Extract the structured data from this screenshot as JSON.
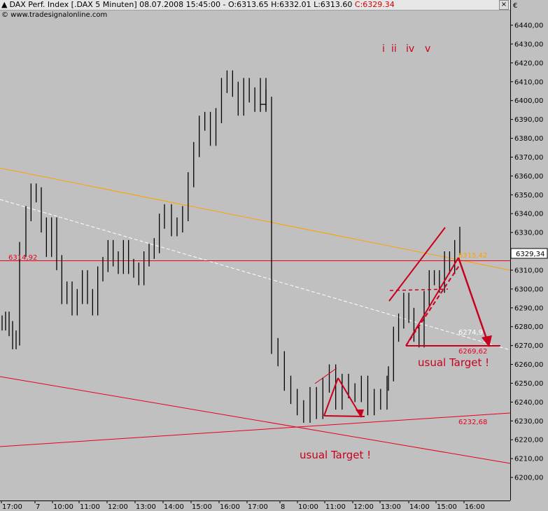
{
  "window": {
    "title": "DAX Perf. Index [.DAX  5 Minuten] 08.07.2008 15:45:00 - O:6313.65 H:6332.01 L:6313.60 ",
    "last_value": "C:6329.34",
    "close_symbol": "×",
    "currency": "€"
  },
  "copyright": "© www.tradesignalonline.com",
  "colors": {
    "background": "#c0c0c0",
    "candle": "#000000",
    "orange_line": "#ffa000",
    "red_line": "#e8001c",
    "white_dash": "#ffffff",
    "annotation": "#c8001e"
  },
  "chart_data": {
    "type": "candlestick",
    "title": "DAX Perf. Index [.DAX  5 Minuten] 08.07.2008 15:45:00",
    "ylim": [
      6193,
      6451
    ],
    "y_ticks": [
      "6440,00",
      "6430,00",
      "6420,00",
      "6410,00",
      "6400,00",
      "6390,00",
      "6380,00",
      "6370,00",
      "6360,00",
      "6350,00",
      "6340,00",
      "6330,00",
      "6320,00",
      "6310,00",
      "6300,00",
      "6290,00",
      "6280,00",
      "6270,00",
      "6260,00",
      "6250,00",
      "6240,00",
      "6230,00",
      "6220,00",
      "6210,00",
      "6200,00"
    ],
    "x_ticks": [
      "17:00",
      "7",
      "10:00",
      "11:00",
      "12:00",
      "13:00",
      "14:00",
      "15:00",
      "16:00",
      "17:00",
      "8",
      "10:00",
      "11:00",
      "12:00",
      "13:00",
      "14:00",
      "15:00",
      "16:00"
    ],
    "current_price": "6329,34",
    "ohlc": {
      "open": "6313.65",
      "high": "6332.01",
      "low": "6313.60",
      "close": "6329.34"
    },
    "close_series": [
      6282,
      6284,
      6279,
      6272,
      6274,
      6321,
      6340,
      6352,
      6350,
      6334,
      6321,
      6334,
      6314,
      6296,
      6300,
      6290,
      6296,
      6306,
      6296,
      6290,
      6308,
      6313,
      6322,
      6316,
      6312,
      6322,
      6312,
      6310,
      6306,
      6316,
      6320,
      6323,
      6336,
      6341,
      6332,
      6334,
      6340,
      6358,
      6374,
      6388,
      6390,
      6380,
      6392,
      6408,
      6412,
      6406,
      6396,
      6408,
      6403,
      6398,
      6408,
      6398,
      6270,
      6263,
      6250,
      6243,
      6237,
      6233,
      6244,
      6235,
      6249,
      6256,
      6240,
      6251,
      6246,
      6244,
      6250,
      6237,
      6243,
      6240,
      6250,
      6255,
      6276,
      6283,
      6294,
      6286,
      6276,
      6273,
      6295,
      6306,
      6306,
      6302,
      6316,
      6312,
      6322,
      6329
    ],
    "levels": [
      {
        "label": "6314,92",
        "value": 6314.92
      },
      {
        "label": "6315,42",
        "value": 6315.42
      },
      {
        "label": "6274,9",
        "value": 6274.9
      },
      {
        "label": "6269,62",
        "value": 6269.62
      },
      {
        "label": "6232,68",
        "value": 6232.68
      }
    ],
    "annotations": {
      "waves": [
        "i",
        "ii",
        "iv",
        "v"
      ],
      "target_label": "usual Target !"
    }
  }
}
